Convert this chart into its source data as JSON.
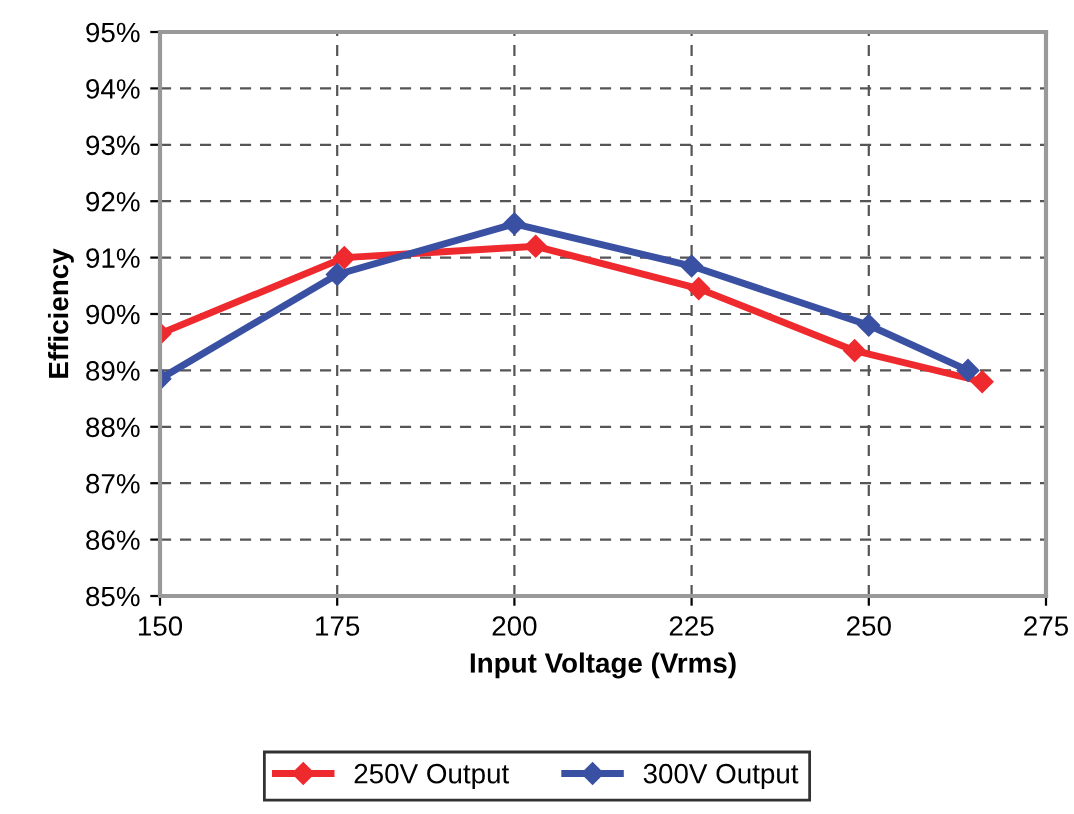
{
  "chart_data": {
    "type": "line",
    "xlabel": "Input Voltage (Vrms)",
    "ylabel": "Efficiency",
    "xlim": [
      150,
      275
    ],
    "xticks": [
      150,
      175,
      200,
      225,
      250,
      275
    ],
    "ylim": [
      85,
      95
    ],
    "yticks": [
      {
        "value": 85,
        "label": "85%"
      },
      {
        "value": 86,
        "label": "86%"
      },
      {
        "value": 87,
        "label": "87%"
      },
      {
        "value": 88,
        "label": "88%"
      },
      {
        "value": 89,
        "label": "89%"
      },
      {
        "value": 90,
        "label": "90%"
      },
      {
        "value": 91,
        "label": "91%"
      },
      {
        "value": 92,
        "label": "92%"
      },
      {
        "value": 93,
        "label": "93%"
      },
      {
        "value": 94,
        "label": "94%"
      },
      {
        "value": 95,
        "label": "95%"
      }
    ],
    "grid": true,
    "legend": "bottom",
    "marker": "diamond",
    "line_style": "solid",
    "series": [
      {
        "name": "250V Output",
        "color": "#ee2a2f",
        "x": [
          150,
          176,
          203,
          226,
          248,
          266
        ],
        "values": [
          89.65,
          91.0,
          91.2,
          90.45,
          89.35,
          88.8
        ]
      },
      {
        "name": "300V Output",
        "color": "#3a51a3",
        "x": [
          150,
          175,
          200,
          225,
          250,
          264
        ],
        "values": [
          88.85,
          90.7,
          91.6,
          90.85,
          89.8,
          89.0
        ]
      }
    ]
  }
}
